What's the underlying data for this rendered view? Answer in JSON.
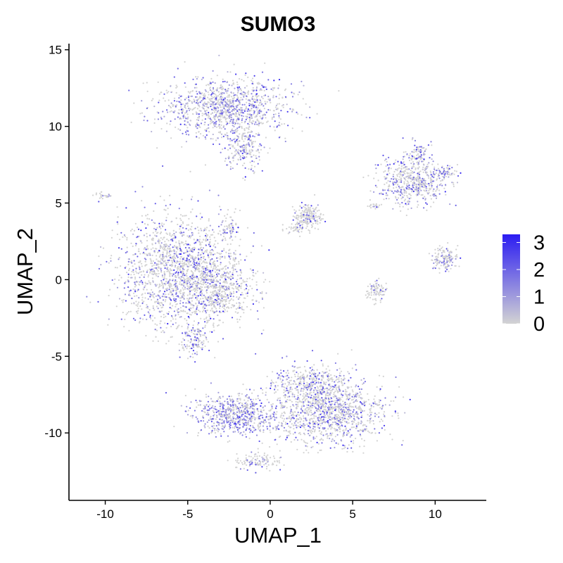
{
  "chart_data": {
    "type": "scatter",
    "title": "SUMO3",
    "xlabel": "UMAP_1",
    "ylabel": "UMAP_2",
    "xlim": [
      -12.2,
      13.1
    ],
    "ylim": [
      -14.4,
      15.4
    ],
    "x_ticks": [
      -10,
      -5,
      0,
      5,
      10
    ],
    "y_ticks": [
      -10,
      -5,
      0,
      5,
      10,
      15
    ],
    "x_tick_labels": [
      "-10",
      "-5",
      "0",
      "5",
      "10"
    ],
    "y_tick_labels": [
      "-10",
      "-5",
      "0",
      "5",
      "10",
      "15"
    ],
    "grid": false,
    "legend_position": "right",
    "color_scale": {
      "low_color": "#d3d3d3",
      "high_color": "#2b1cf2",
      "min": 0,
      "max": 3.3,
      "ticks": [
        0,
        1,
        2,
        3
      ],
      "tick_labels": [
        "0",
        "1",
        "2",
        "3"
      ]
    },
    "clusters": [
      {
        "cx": -2.7,
        "cy": 11.2,
        "sx": 2.6,
        "sy": 1.2,
        "n": 1100,
        "mean_expr": 0.75
      },
      {
        "cx": -1.6,
        "cy": 8.6,
        "sx": 0.8,
        "sy": 1.0,
        "n": 220,
        "mean_expr": 0.7
      },
      {
        "cx": -5.5,
        "cy": 0.6,
        "sx": 2.4,
        "sy": 2.4,
        "n": 1900,
        "mean_expr": 0.45
      },
      {
        "cx": -3.2,
        "cy": -0.8,
        "sx": 1.4,
        "sy": 1.2,
        "n": 500,
        "mean_expr": 0.4
      },
      {
        "cx": -4.6,
        "cy": -4.0,
        "sx": 0.6,
        "sy": 0.8,
        "n": 120,
        "mean_expr": 0.55
      },
      {
        "cx": -2.5,
        "cy": 3.4,
        "sx": 0.3,
        "sy": 0.6,
        "n": 60,
        "mean_expr": 0.4
      },
      {
        "cx": -2.0,
        "cy": -8.8,
        "sx": 1.7,
        "sy": 0.9,
        "n": 650,
        "mean_expr": 0.9
      },
      {
        "cx": 3.5,
        "cy": -8.6,
        "sx": 2.2,
        "sy": 1.4,
        "n": 1200,
        "mean_expr": 0.55
      },
      {
        "cx": 2.4,
        "cy": -6.6,
        "sx": 1.5,
        "sy": 0.7,
        "n": 300,
        "mean_expr": 0.45
      },
      {
        "cx": -0.8,
        "cy": -11.8,
        "sx": 1.0,
        "sy": 0.4,
        "n": 110,
        "mean_expr": 0.4
      },
      {
        "cx": 2.3,
        "cy": 4.1,
        "sx": 0.6,
        "sy": 0.5,
        "n": 200,
        "mean_expr": 0.2
      },
      {
        "cx": 1.5,
        "cy": 3.3,
        "sx": 0.5,
        "sy": 0.2,
        "n": 40,
        "mean_expr": 0.3
      },
      {
        "cx": 8.6,
        "cy": 6.4,
        "sx": 1.3,
        "sy": 1.0,
        "n": 550,
        "mean_expr": 0.6
      },
      {
        "cx": 9.0,
        "cy": 8.2,
        "sx": 0.4,
        "sy": 0.5,
        "n": 80,
        "mean_expr": 0.7
      },
      {
        "cx": 10.5,
        "cy": 7.0,
        "sx": 0.6,
        "sy": 0.3,
        "n": 60,
        "mean_expr": 0.55
      },
      {
        "cx": 10.6,
        "cy": 1.4,
        "sx": 0.5,
        "sy": 0.5,
        "n": 140,
        "mean_expr": 0.5
      },
      {
        "cx": 6.5,
        "cy": -0.8,
        "sx": 0.4,
        "sy": 0.4,
        "n": 90,
        "mean_expr": 0.3
      },
      {
        "cx": -10.2,
        "cy": 5.5,
        "sx": 0.4,
        "sy": 0.15,
        "n": 25,
        "mean_expr": 0.2
      },
      {
        "cx": 6.2,
        "cy": 4.8,
        "sx": 0.3,
        "sy": 0.2,
        "n": 20,
        "mean_expr": 0.3
      }
    ]
  }
}
